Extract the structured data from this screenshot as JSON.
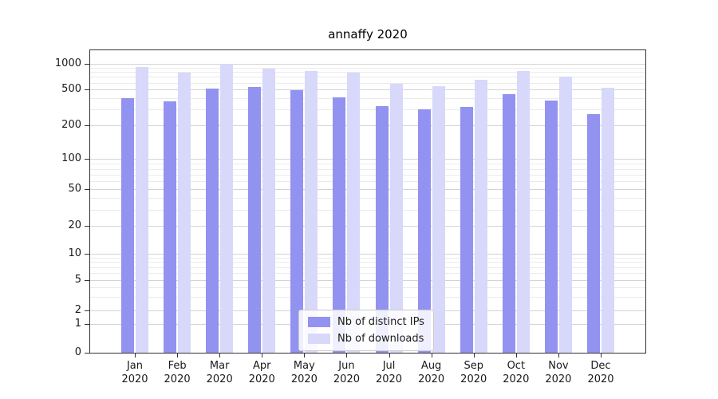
{
  "chart_data": {
    "type": "bar",
    "title": "annaffy 2020",
    "categories": [
      "Jan",
      "Feb",
      "Mar",
      "Apr",
      "May",
      "Jun",
      "Jul",
      "Aug",
      "Sep",
      "Oct",
      "Nov",
      "Dec"
    ],
    "x_year": "2020",
    "series": [
      {
        "name": "Nb of distinct IPs",
        "color": "#9292f0",
        "values": [
          400,
          370,
          510,
          530,
          490,
          410,
          330,
          300,
          320,
          440,
          375,
          265
        ]
      },
      {
        "name": "Nb of downloads",
        "color": "#d8d8fa",
        "values": [
          920,
          780,
          1010,
          870,
          830,
          780,
          580,
          545,
          650,
          830,
          700,
          520
        ]
      }
    ],
    "yscale": "symlog",
    "yticks": [
      0,
      1,
      2,
      5,
      10,
      20,
      50,
      100,
      200,
      500,
      1000
    ],
    "ylim": [
      0,
      1300
    ],
    "grid": true,
    "legend_position": "lower center"
  }
}
